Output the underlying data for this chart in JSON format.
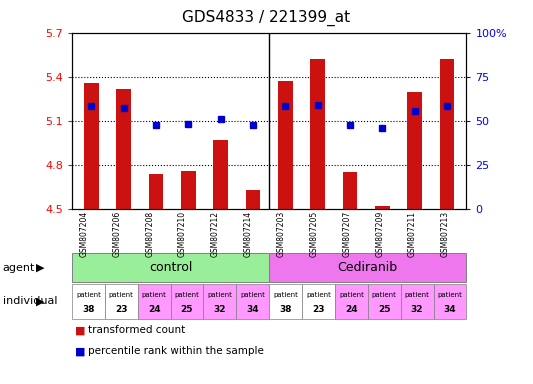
{
  "title": "GDS4833 / 221399_at",
  "samples": [
    "GSM807204",
    "GSM807206",
    "GSM807208",
    "GSM807210",
    "GSM807212",
    "GSM807214",
    "GSM807203",
    "GSM807205",
    "GSM807207",
    "GSM807209",
    "GSM807211",
    "GSM807213"
  ],
  "red_values": [
    5.36,
    5.32,
    4.74,
    4.76,
    4.97,
    4.63,
    5.37,
    5.52,
    4.75,
    4.52,
    5.3,
    5.52
  ],
  "blue_values": [
    5.2,
    5.19,
    5.07,
    5.08,
    5.11,
    5.07,
    5.2,
    5.21,
    5.07,
    5.05,
    5.17,
    5.2
  ],
  "y_min": 4.5,
  "y_max": 5.7,
  "y_ticks_left": [
    4.5,
    4.8,
    5.1,
    5.4,
    5.7
  ],
  "y_ticks_right_vals": [
    0,
    25,
    50,
    75,
    100
  ],
  "y_ticks_right_labels": [
    "0",
    "25",
    "50",
    "75",
    "100%"
  ],
  "individual_labels_top": [
    "patient",
    "patient",
    "patient",
    "patient",
    "patient",
    "patient",
    "patient",
    "patient",
    "patient",
    "patient",
    "patient",
    "patient"
  ],
  "individual_labels_bot": [
    "38",
    "23",
    "24",
    "25",
    "32",
    "34",
    "38",
    "23",
    "24",
    "25",
    "32",
    "34"
  ],
  "ind_colors": [
    "#ffffff",
    "#ffffff",
    "#ff99ff",
    "#ff99ff",
    "#ff99ff",
    "#ff99ff",
    "#ffffff",
    "#ffffff",
    "#ff99ff",
    "#ff99ff",
    "#ff99ff",
    "#ff99ff"
  ],
  "control_color": "#99ee99",
  "cediranib_color": "#ee77ee",
  "bar_color": "#cc1111",
  "blue_square_color": "#0000cc",
  "bar_bottom": 4.5,
  "legend_red": "transformed count",
  "legend_blue": "percentile rank within the sample",
  "grid_lines": [
    4.8,
    5.1,
    5.4
  ]
}
